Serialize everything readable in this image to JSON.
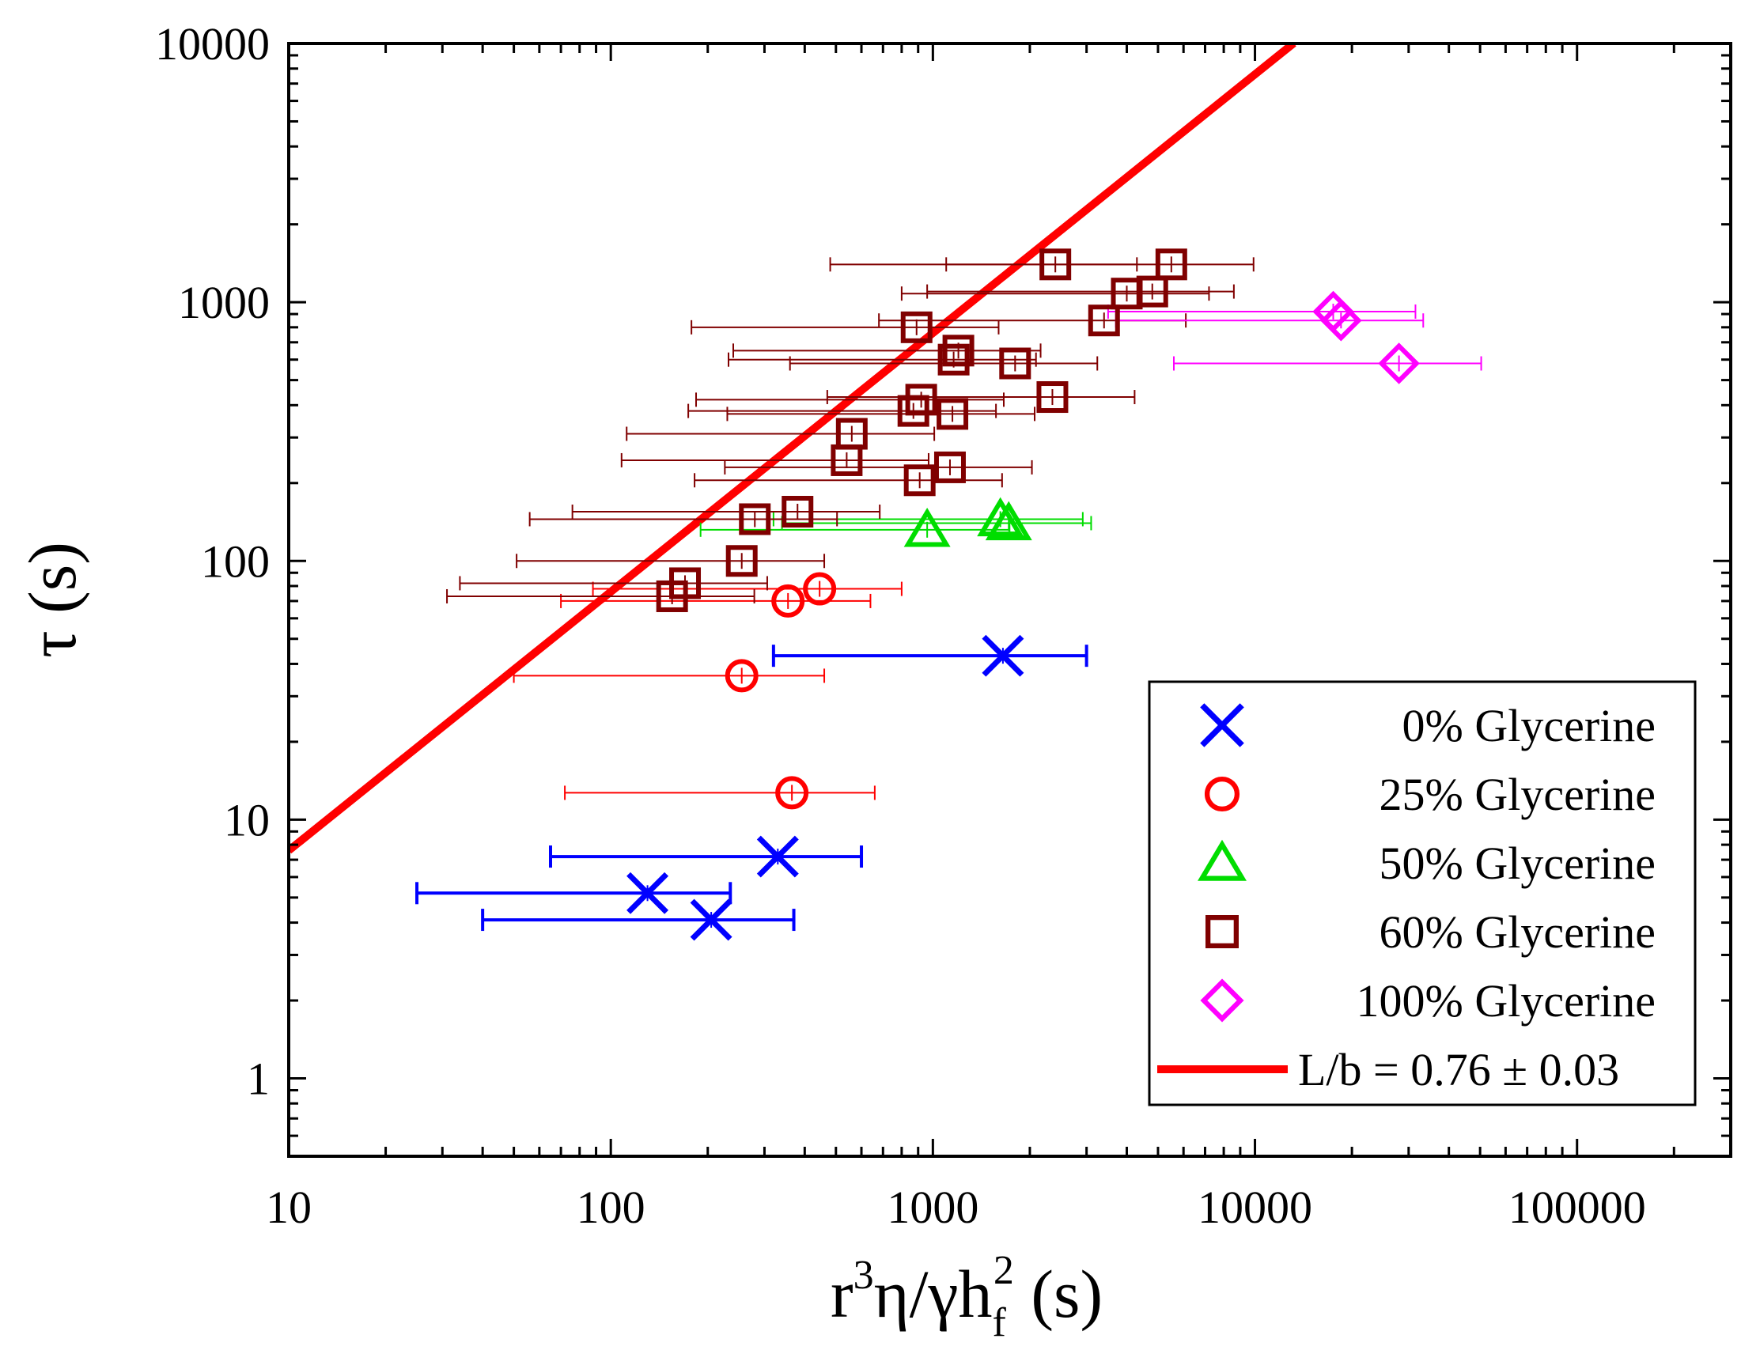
{
  "chart_data": {
    "type": "scatter",
    "title": "",
    "x_scale": "log",
    "y_scale": "log",
    "xlim": [
      10,
      300000
    ],
    "ylim": [
      0.5,
      10000
    ],
    "x_ticks": [
      {
        "value": 10,
        "label": "10"
      },
      {
        "value": 100,
        "label": "100"
      },
      {
        "value": 1000,
        "label": "1000"
      },
      {
        "value": 10000,
        "label": "10000"
      },
      {
        "value": 100000,
        "label": "100000"
      }
    ],
    "y_ticks": [
      {
        "value": 1,
        "label": "1"
      },
      {
        "value": 10,
        "label": "10"
      },
      {
        "value": 100,
        "label": "100"
      },
      {
        "value": 1000,
        "label": "1000"
      },
      {
        "value": 10000,
        "label": "10000"
      }
    ],
    "xlabel": {
      "base": "r",
      "sup1": "3",
      "mid": "η/γh",
      "sub": "f",
      "sup2": "2",
      "tail": " (s)"
    },
    "ylabel": "τ (s)",
    "legend_position": "bottom-right",
    "series": [
      {
        "name": "0% Glycerine",
        "marker": "x",
        "color": "#0000ff",
        "points": [
          {
            "x": 1650,
            "y": 43,
            "xerr": [
              320,
              3000
            ]
          },
          {
            "x": 330,
            "y": 7.2,
            "xerr": [
              65,
              600
            ]
          },
          {
            "x": 130,
            "y": 5.2,
            "xerr": [
              25,
              235
            ]
          },
          {
            "x": 205,
            "y": 4.1,
            "xerr": [
              40,
              370
            ]
          }
        ]
      },
      {
        "name": "25% Glycerine",
        "marker": "circle",
        "color": "#ff0000",
        "points": [
          {
            "x": 355,
            "y": 70,
            "xerr": [
              70,
              640
            ]
          },
          {
            "x": 445,
            "y": 78,
            "xerr": [
              88,
              800
            ]
          },
          {
            "x": 255,
            "y": 36,
            "xerr": [
              50,
              460
            ]
          },
          {
            "x": 365,
            "y": 12.7,
            "xerr": [
              72,
              660
            ]
          }
        ]
      },
      {
        "name": "50% Glycerine",
        "marker": "triangle",
        "color": "#00dd00",
        "points": [
          {
            "x": 960,
            "y": 132,
            "xerr": [
              190,
              1730
            ]
          },
          {
            "x": 1620,
            "y": 145,
            "xerr": [
              320,
              2920
            ]
          },
          {
            "x": 1720,
            "y": 140,
            "xerr": [
              340,
              3100
            ]
          }
        ]
      },
      {
        "name": "60% Glycerine",
        "marker": "square",
        "color": "#800000",
        "points": [
          {
            "x": 2400,
            "y": 1400,
            "xerr": [
              480,
              4300
            ]
          },
          {
            "x": 5500,
            "y": 1400,
            "xerr": [
              1100,
              9900
            ]
          },
          {
            "x": 4000,
            "y": 1080,
            "xerr": [
              800,
              7200
            ]
          },
          {
            "x": 4800,
            "y": 1100,
            "xerr": [
              960,
              8600
            ]
          },
          {
            "x": 3400,
            "y": 850,
            "xerr": [
              680,
              6100
            ]
          },
          {
            "x": 890,
            "y": 800,
            "xerr": [
              178,
              1600
            ]
          },
          {
            "x": 1200,
            "y": 650,
            "xerr": [
              240,
              2160
            ]
          },
          {
            "x": 1160,
            "y": 600,
            "xerr": [
              232,
              2090
            ]
          },
          {
            "x": 1800,
            "y": 580,
            "xerr": [
              360,
              3240
            ]
          },
          {
            "x": 2350,
            "y": 430,
            "xerr": [
              470,
              4230
            ]
          },
          {
            "x": 920,
            "y": 420,
            "xerr": [
              184,
              1660
            ]
          },
          {
            "x": 870,
            "y": 380,
            "xerr": [
              174,
              1570
            ]
          },
          {
            "x": 1150,
            "y": 370,
            "xerr": [
              230,
              2070
            ]
          },
          {
            "x": 560,
            "y": 310,
            "xerr": [
              112,
              1010
            ]
          },
          {
            "x": 540,
            "y": 245,
            "xerr": [
              108,
              970
            ]
          },
          {
            "x": 1130,
            "y": 230,
            "xerr": [
              226,
              2030
            ]
          },
          {
            "x": 910,
            "y": 205,
            "xerr": [
              182,
              1640
            ]
          },
          {
            "x": 380,
            "y": 155,
            "xerr": [
              76,
              684
            ]
          },
          {
            "x": 280,
            "y": 145,
            "xerr": [
              56,
              504
            ]
          },
          {
            "x": 255,
            "y": 100,
            "xerr": [
              51,
              460
            ]
          },
          {
            "x": 170,
            "y": 82,
            "xerr": [
              34,
              306
            ]
          },
          {
            "x": 155,
            "y": 73,
            "xerr": [
              31,
              279
            ]
          }
        ]
      },
      {
        "name": "100% Glycerine",
        "marker": "diamond",
        "color": "#ff00ff",
        "points": [
          {
            "x": 17500,
            "y": 920,
            "xerr": [
              3500,
              31500
            ]
          },
          {
            "x": 18500,
            "y": 850,
            "xerr": [
              3700,
              33300
            ]
          },
          {
            "x": 28000,
            "y": 580,
            "xerr": [
              5600,
              50400
            ]
          }
        ]
      }
    ],
    "fit_line": {
      "name": "L/b = 0.76 ± 0.03",
      "label_prefix": "L/b = 0.76 ",
      "label_pm": "±",
      "label_suffix": " 0.03",
      "color": "#ff0000",
      "slope": 1,
      "coefficient": 0.76,
      "x_range": [
        10,
        13200
      ]
    }
  }
}
